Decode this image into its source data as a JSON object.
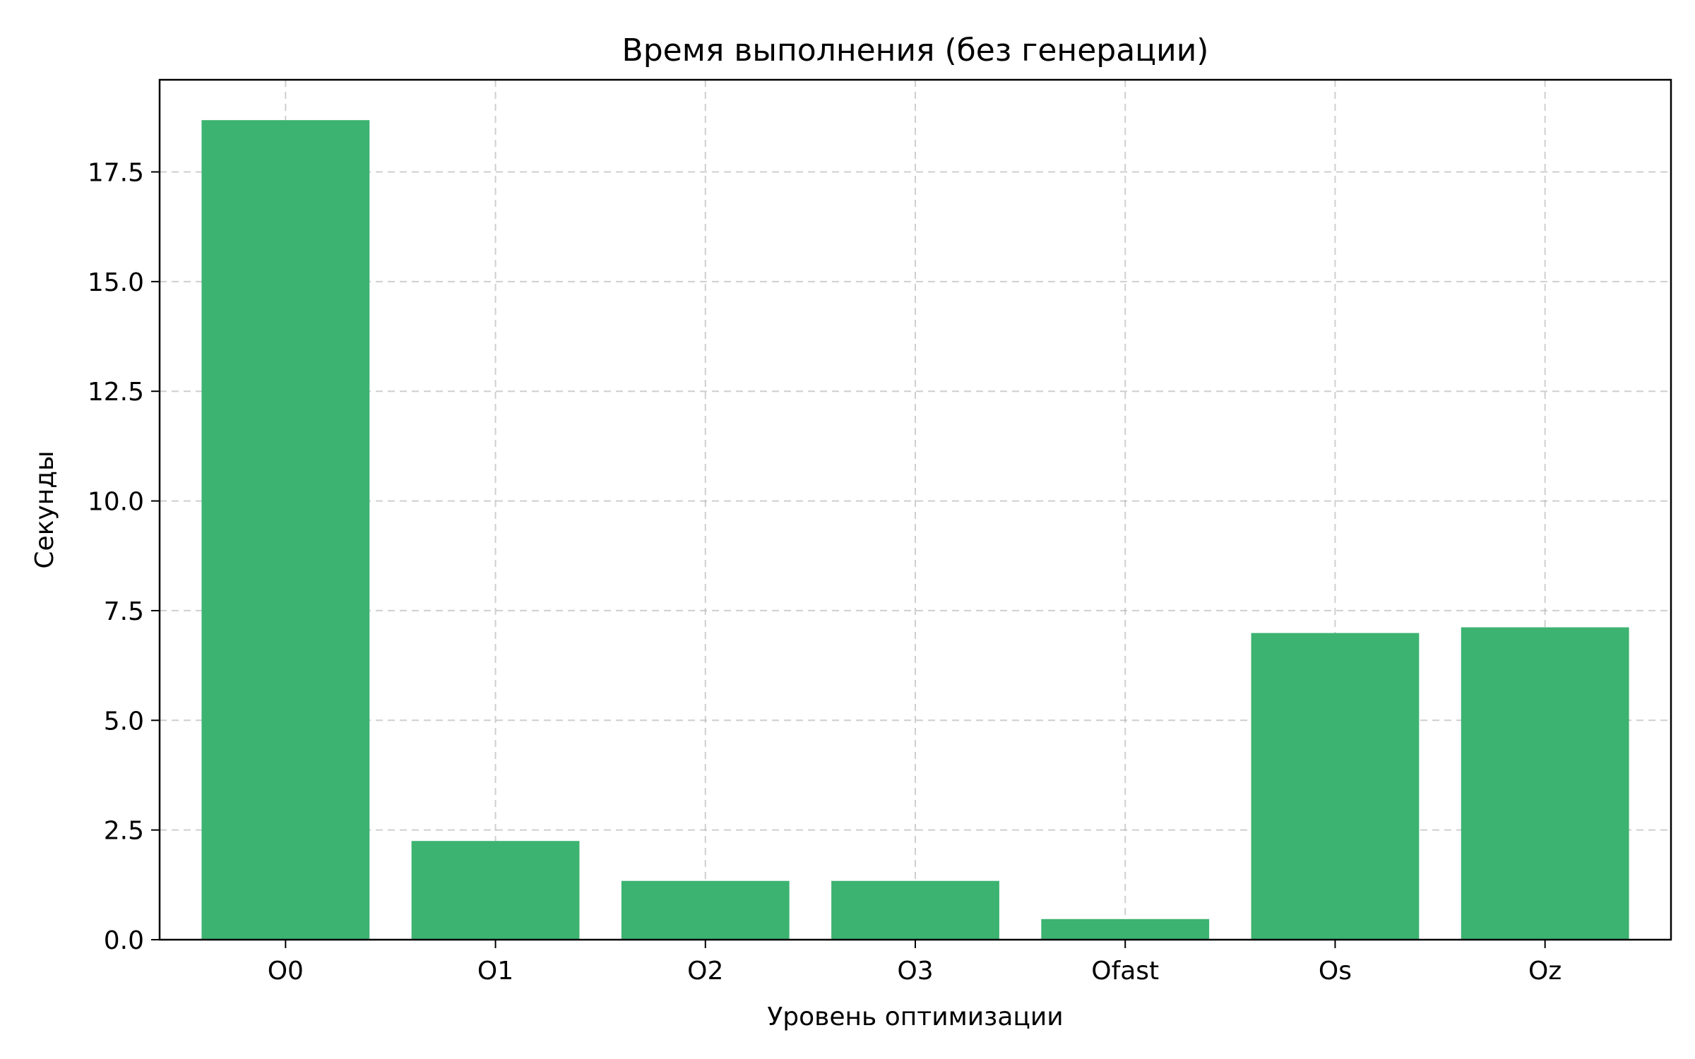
{
  "chart_data": {
    "type": "bar",
    "title": "Время выполнения (без генерации)",
    "xlabel": "Уровень оптимизации",
    "ylabel": "Секунды",
    "categories": [
      "O0",
      "O1",
      "O2",
      "O3",
      "Ofast",
      "Os",
      "Oz"
    ],
    "values": [
      18.68,
      2.25,
      1.34,
      1.34,
      0.47,
      6.99,
      7.12
    ],
    "ylim": [
      0,
      19.6
    ],
    "yticks": [
      0.0,
      2.5,
      5.0,
      7.5,
      10.0,
      12.5,
      15.0,
      17.5
    ],
    "ytick_labels": [
      "0.0",
      "2.5",
      "5.0",
      "7.5",
      "10.0",
      "12.5",
      "15.0",
      "17.5"
    ],
    "grid": true,
    "bar_color": "#3cb371"
  }
}
